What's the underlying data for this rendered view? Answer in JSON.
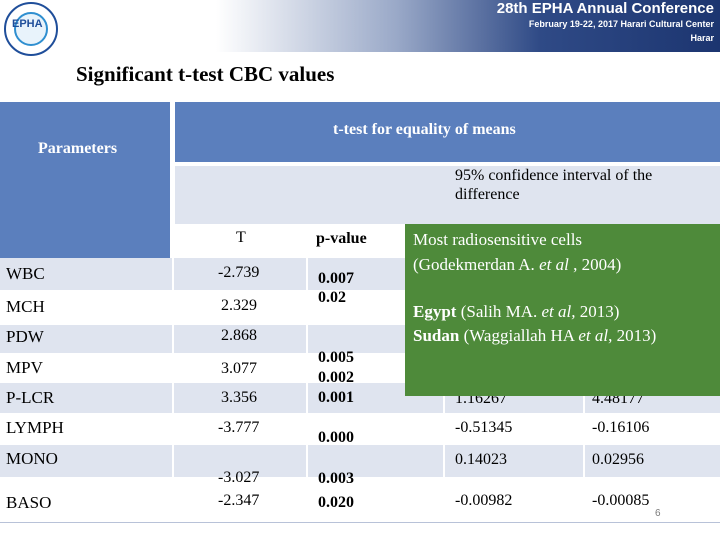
{
  "header": {
    "logo_text": "EPHA",
    "conference_title": "28th EPHA Annual Conference",
    "conference_dates": "February 19-22, 2017  Harari Cultural Center",
    "conference_place": "Harar"
  },
  "title": "Significant t-test  CBC values",
  "table": {
    "parameters_header": "Parameters",
    "ttest_header": "t-test for equality of means",
    "ci_header": "95% confidence interval of the difference",
    "t_header": "T",
    "p_header": "p-value",
    "rows": [
      {
        "param": "WBC",
        "t": "-2.739"
      },
      {
        "param": "MCH",
        "t": "2.329"
      },
      {
        "param": "PDW",
        "t": "2.868"
      },
      {
        "param": "MPV",
        "t": "3.077"
      },
      {
        "param": "P-LCR",
        "t": "3.356"
      },
      {
        "param": "LYMPH",
        "t": "-3.777"
      },
      {
        "param": "MONO",
        "t": "-3.027"
      },
      {
        "param": "BASO",
        "t": "-2.347"
      }
    ],
    "p_values": {
      "group1_a": "0.007",
      "group1_b": "0.02",
      "group2_a": "0.005",
      "group2_b": "0.002",
      "group2_c": "0.001",
      "lymph": "0.000",
      "mono": "0.003",
      "baso": "0.020"
    },
    "ci_lower": {
      "plcr_partial": "1.16267",
      "lymph": "-0.51345",
      "mono": "0.14023",
      "baso": "-0.00982"
    },
    "ci_upper": {
      "plcr_partial": "4.48177",
      "lymph": "-0.16106",
      "mono": "0.02956",
      "baso": "-0.00085"
    }
  },
  "overlay": {
    "line1": "Most radiosensitive cells",
    "line2_pre": "(Godekmerdan A. ",
    "line2_etal": "et al",
    "line2_post": " , 2004)",
    "line3_bold": "Egypt",
    "line3_pre": " (Salih MA. ",
    "line3_etal": "et al,",
    "line3_post": " 2013)",
    "line4_bold": "Sudan",
    "line4_pre": " (Waggiallah HA ",
    "line4_etal": "et al",
    "line4_post": ", 2013)"
  },
  "page_number": "6",
  "colors": {
    "header_blue": "#5b7fbd",
    "row_light": "#dfe4ef",
    "overlay_green": "#4e8a3a"
  }
}
